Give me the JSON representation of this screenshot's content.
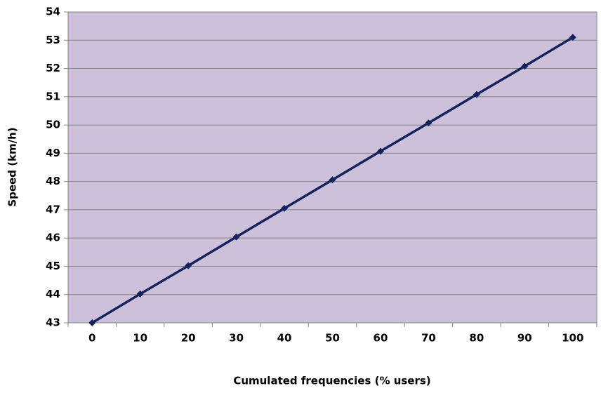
{
  "chart_data": {
    "type": "line",
    "x_label": "Cumulated frequencies (% users)",
    "y_label": "Speed (km/h)",
    "categories": [
      0,
      10,
      20,
      30,
      40,
      50,
      60,
      70,
      80,
      90,
      100
    ],
    "series": [
      {
        "name": "Speed",
        "color": "#14215a",
        "values": [
          43,
          44.02,
          45.02,
          46.04,
          47.05,
          48.06,
          49.07,
          50.07,
          51.08,
          52.08,
          53.1
        ]
      }
    ],
    "ylim": [
      43,
      54
    ],
    "yticks": [
      43,
      44,
      45,
      46,
      47,
      48,
      49,
      50,
      51,
      52,
      53,
      54
    ],
    "grid": true,
    "plot_background": "#ccc0da"
  }
}
